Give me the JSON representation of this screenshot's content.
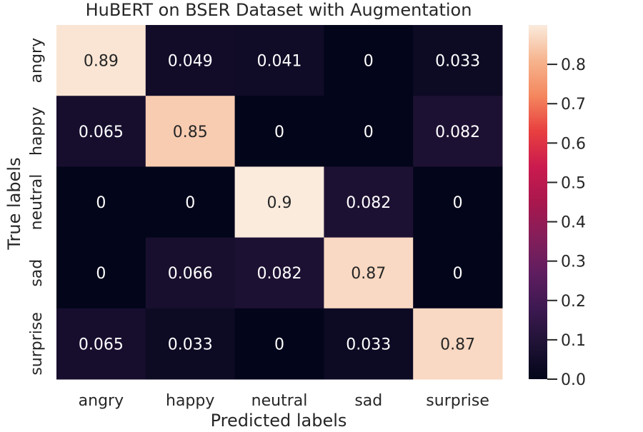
{
  "chart_data": {
    "type": "heatmap",
    "title": "HuBERT on BSER Dataset with Augmentation",
    "xlabel": "Predicted labels",
    "ylabel": "True labels",
    "x_categories": [
      "angry",
      "happy",
      "neutral",
      "sad",
      "surprise"
    ],
    "y_categories": [
      "angry",
      "happy",
      "neutral",
      "sad",
      "surprise"
    ],
    "values": [
      [
        0.89,
        0.049,
        0.041,
        0,
        0.033
      ],
      [
        0.065,
        0.85,
        0,
        0,
        0.082
      ],
      [
        0,
        0,
        0.9,
        0.082,
        0
      ],
      [
        0,
        0.066,
        0.082,
        0.87,
        0
      ],
      [
        0.065,
        0.033,
        0,
        0.033,
        0.87
      ]
    ],
    "cell_labels": [
      [
        "0.89",
        "0.049",
        "0.041",
        "0",
        "0.033"
      ],
      [
        "0.065",
        "0.85",
        "0",
        "0",
        "0.082"
      ],
      [
        "0",
        "0",
        "0.9",
        "0.082",
        "0"
      ],
      [
        "0",
        "0.066",
        "0.082",
        "0.87",
        "0"
      ],
      [
        "0.065",
        "0.033",
        "0",
        "0.033",
        "0.87"
      ]
    ],
    "colorbar": {
      "range": [
        0,
        0.9
      ],
      "ticks": [
        0.0,
        0.1,
        0.2,
        0.3,
        0.4,
        0.5,
        0.6,
        0.7,
        0.8
      ],
      "tick_labels": [
        "0.0",
        "0.1",
        "0.2",
        "0.3",
        "0.4",
        "0.5",
        "0.6",
        "0.7",
        "0.8"
      ],
      "colormap": "rocket"
    },
    "grid": false
  }
}
